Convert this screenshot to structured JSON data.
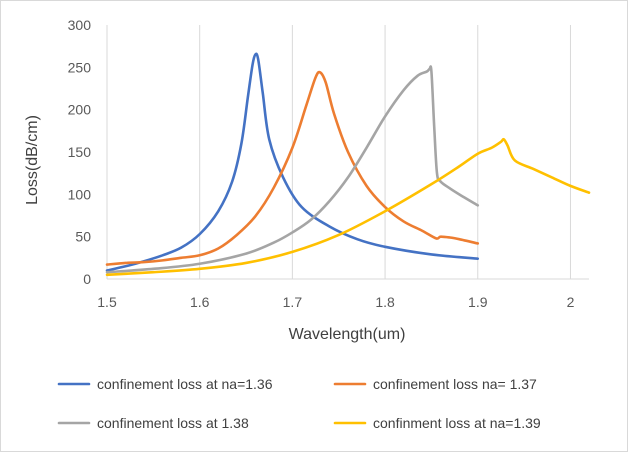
{
  "chart_data": {
    "type": "line",
    "xlabel": "Wavelength(um)",
    "ylabel": "Loss(dB/cm)",
    "xlim": [
      1.5,
      2.02
    ],
    "ylim": [
      0,
      300
    ],
    "xticks": [
      "1.5",
      "1.6",
      "1.7",
      "1.8",
      "1.9",
      "2"
    ],
    "yticks": [
      "0",
      "50",
      "100",
      "150",
      "200",
      "250",
      "300"
    ],
    "grid": "vertical",
    "legend_position": "bottom",
    "series": [
      {
        "name": "confinement loss at na=1.36",
        "color": "#4472C4",
        "x": [
          1.5,
          1.52,
          1.54,
          1.56,
          1.58,
          1.6,
          1.62,
          1.635,
          1.645,
          1.652,
          1.657,
          1.66,
          1.663,
          1.668,
          1.675,
          1.69,
          1.71,
          1.74,
          1.77,
          1.8,
          1.85,
          1.9
        ],
        "y": [
          10,
          15,
          21,
          28,
          37,
          53,
          80,
          115,
          160,
          215,
          253,
          265,
          260,
          220,
          165,
          120,
          85,
          62,
          47,
          38,
          29,
          24
        ]
      },
      {
        "name": "confinement loss na= 1.37",
        "color": "#ED7D31",
        "x": [
          1.5,
          1.52,
          1.54,
          1.56,
          1.58,
          1.6,
          1.62,
          1.64,
          1.66,
          1.68,
          1.7,
          1.715,
          1.725,
          1.73,
          1.736,
          1.745,
          1.76,
          1.78,
          1.8,
          1.82,
          1.84,
          1.855,
          1.86,
          1.87,
          1.88,
          1.9
        ],
        "y": [
          17,
          19,
          20,
          22,
          25,
          28,
          36,
          52,
          74,
          108,
          155,
          205,
          238,
          244,
          232,
          195,
          150,
          110,
          85,
          68,
          57,
          48,
          50,
          49,
          47,
          42
        ]
      },
      {
        "name": "confinement loss at 1.38",
        "color": "#A5A5A5",
        "x": [
          1.5,
          1.55,
          1.6,
          1.65,
          1.68,
          1.7,
          1.72,
          1.74,
          1.76,
          1.78,
          1.8,
          1.82,
          1.835,
          1.845,
          1.848,
          1.85,
          1.853,
          1.856,
          1.86,
          1.87,
          1.88,
          1.9
        ],
        "y": [
          8,
          12,
          18,
          30,
          43,
          55,
          70,
          92,
          120,
          155,
          192,
          223,
          240,
          245,
          248,
          245,
          180,
          125,
          115,
          107,
          100,
          87
        ]
      },
      {
        "name": "confinment loss at na=1.39",
        "color": "#FFC000",
        "x": [
          1.5,
          1.55,
          1.6,
          1.65,
          1.7,
          1.75,
          1.8,
          1.85,
          1.88,
          1.9,
          1.915,
          1.925,
          1.928,
          1.932,
          1.94,
          1.96,
          1.98,
          2.0,
          2.02
        ],
        "y": [
          5,
          8,
          12,
          19,
          32,
          52,
          80,
          112,
          133,
          148,
          155,
          162,
          165,
          158,
          140,
          130,
          120,
          110,
          102
        ]
      }
    ]
  }
}
